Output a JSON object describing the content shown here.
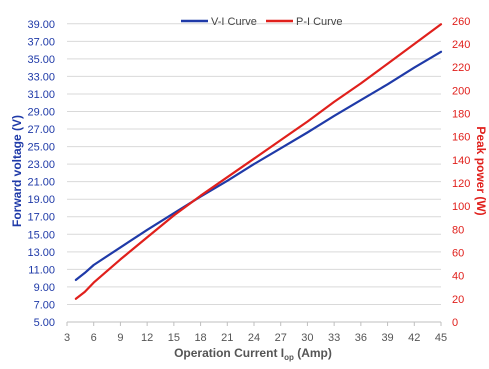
{
  "chart_data": {
    "type": "line",
    "xlabel": {
      "main": "Operation Current I",
      "sub": "op",
      "tail": " (Amp)"
    },
    "ylabel_left": "Forward voltage (V)",
    "ylabel_right": "Peak power (W)",
    "x_ticks": [
      "3",
      "6",
      "9",
      "12",
      "15",
      "18",
      "21",
      "24",
      "27",
      "30",
      "33",
      "36",
      "39",
      "42",
      "45"
    ],
    "xlim": [
      3,
      45
    ],
    "y_left_ticks": [
      "5.00",
      "7.00",
      "9.00",
      "11.00",
      "13.00",
      "15.00",
      "17.00",
      "19.00",
      "21.00",
      "23.00",
      "25.00",
      "27.00",
      "29.00",
      "31.00",
      "33.00",
      "35.00",
      "37.00",
      "39.00"
    ],
    "ylim_left": [
      5,
      40
    ],
    "y_right_ticks": [
      "0",
      "20",
      "40",
      "60",
      "80",
      "100",
      "120",
      "140",
      "160",
      "180",
      "200",
      "220",
      "240",
      "260"
    ],
    "ylim_right": [
      0,
      265
    ],
    "grid": "horizontal",
    "legend_position": "top-center",
    "series": [
      {
        "name": "V-I Curve",
        "axis": "left",
        "color": "#1f3aa8",
        "x": [
          4,
          5,
          6,
          9,
          12,
          15,
          18,
          21,
          24,
          27,
          30,
          33,
          36,
          39,
          42,
          45
        ],
        "y": [
          9.8,
          10.6,
          11.5,
          13.5,
          15.5,
          17.4,
          19.3,
          21.1,
          23.0,
          24.8,
          26.6,
          28.5,
          30.3,
          32.1,
          34.0,
          35.8
        ]
      },
      {
        "name": "P-I Curve",
        "axis": "right",
        "color": "#e0201c",
        "x": [
          4,
          5,
          6,
          9,
          12,
          15,
          18,
          21,
          24,
          27,
          30,
          33,
          36,
          39,
          42,
          45
        ],
        "y": [
          20,
          26,
          34,
          54,
          73,
          92,
          109,
          125,
          141,
          157,
          173,
          190,
          206,
          223,
          240,
          257
        ]
      }
    ]
  }
}
